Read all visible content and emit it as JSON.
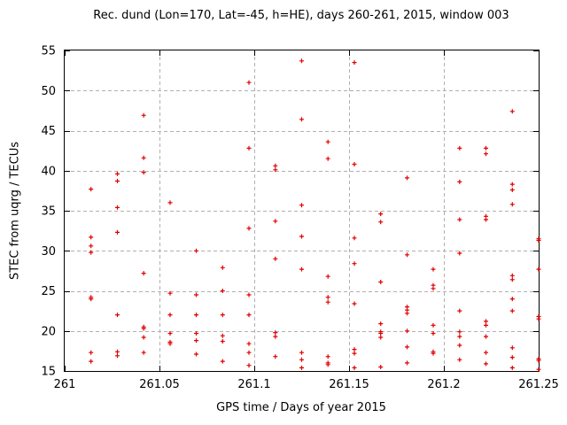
{
  "chart_data": {
    "type": "scatter",
    "title": "Rec. dund (Lon=170, Lat=-45, h=HE), days 260-261, 2015, window 003",
    "xlabel": "GPS time / Days of year 2015",
    "ylabel": "STEC from uqrg / TECUs",
    "xlim": [
      261,
      261.25
    ],
    "ylim": [
      15,
      55
    ],
    "xticks": [
      261,
      261.05,
      261.1,
      261.15,
      261.2,
      261.25
    ],
    "xtick_labels": [
      "261",
      "261.05",
      "261.1",
      "261.15",
      "261.2",
      "261.25"
    ],
    "yticks": [
      15,
      20,
      25,
      30,
      35,
      40,
      45,
      50,
      55
    ],
    "ytick_labels": [
      "15",
      "20",
      "25",
      "30",
      "35",
      "40",
      "45",
      "50",
      "55"
    ],
    "grid": true,
    "legend": "none",
    "marker": "plus",
    "marker_color": "#e10000",
    "grid_color": "#b0b0b0",
    "frame_color": "#000000",
    "points": [
      [
        261.0139,
        37.7
      ],
      [
        261.0139,
        31.7
      ],
      [
        261.0139,
        30.6
      ],
      [
        261.0139,
        29.8
      ],
      [
        261.0139,
        24.2
      ],
      [
        261.0139,
        24.0
      ],
      [
        261.0139,
        17.3
      ],
      [
        261.0139,
        16.2
      ],
      [
        261.0278,
        39.6
      ],
      [
        261.0278,
        38.7
      ],
      [
        261.0278,
        35.4
      ],
      [
        261.0278,
        32.3
      ],
      [
        261.0278,
        22.0
      ],
      [
        261.0278,
        17.4
      ],
      [
        261.0278,
        16.9
      ],
      [
        261.0417,
        46.9
      ],
      [
        261.0417,
        41.6
      ],
      [
        261.0417,
        39.8
      ],
      [
        261.0417,
        27.2
      ],
      [
        261.0417,
        20.5
      ],
      [
        261.0417,
        20.3
      ],
      [
        261.0417,
        19.2
      ],
      [
        261.0417,
        17.3
      ],
      [
        261.0556,
        36.0
      ],
      [
        261.0556,
        24.7
      ],
      [
        261.0556,
        22.0
      ],
      [
        261.0556,
        19.7
      ],
      [
        261.0556,
        18.6
      ],
      [
        261.0556,
        18.4
      ],
      [
        261.0694,
        30.0
      ],
      [
        261.0694,
        24.5
      ],
      [
        261.0694,
        22.0
      ],
      [
        261.0694,
        19.7
      ],
      [
        261.0694,
        18.8
      ],
      [
        261.0694,
        17.1
      ],
      [
        261.0833,
        27.9
      ],
      [
        261.0833,
        25.0
      ],
      [
        261.0833,
        22.0
      ],
      [
        261.0833,
        19.4
      ],
      [
        261.0833,
        18.7
      ],
      [
        261.0833,
        16.2
      ],
      [
        261.0972,
        51.0
      ],
      [
        261.0972,
        42.8
      ],
      [
        261.0972,
        32.8
      ],
      [
        261.0972,
        24.5
      ],
      [
        261.0972,
        22.0
      ],
      [
        261.0972,
        18.4
      ],
      [
        261.0972,
        17.3
      ],
      [
        261.0972,
        15.7
      ],
      [
        261.1111,
        40.6
      ],
      [
        261.1111,
        40.1
      ],
      [
        261.1111,
        33.7
      ],
      [
        261.1111,
        29.0
      ],
      [
        261.1111,
        19.8
      ],
      [
        261.1111,
        19.3
      ],
      [
        261.1111,
        16.8
      ],
      [
        261.125,
        53.7
      ],
      [
        261.125,
        46.4
      ],
      [
        261.125,
        35.7
      ],
      [
        261.125,
        31.8
      ],
      [
        261.125,
        27.7
      ],
      [
        261.125,
        17.3
      ],
      [
        261.125,
        16.4
      ],
      [
        261.125,
        15.4
      ],
      [
        261.1389,
        43.6
      ],
      [
        261.1389,
        41.5
      ],
      [
        261.1389,
        26.8
      ],
      [
        261.1389,
        24.2
      ],
      [
        261.1389,
        23.6
      ],
      [
        261.1389,
        16.8
      ],
      [
        261.1389,
        16.0
      ],
      [
        261.1389,
        15.8
      ],
      [
        261.1528,
        53.5
      ],
      [
        261.1528,
        40.8
      ],
      [
        261.1528,
        31.6
      ],
      [
        261.1528,
        28.4
      ],
      [
        261.1528,
        23.4
      ],
      [
        261.1528,
        17.7
      ],
      [
        261.1528,
        17.2
      ],
      [
        261.1528,
        15.4
      ],
      [
        261.1667,
        34.6
      ],
      [
        261.1667,
        33.6
      ],
      [
        261.1667,
        26.1
      ],
      [
        261.1667,
        20.9
      ],
      [
        261.1667,
        19.9
      ],
      [
        261.1667,
        19.7
      ],
      [
        261.1667,
        19.2
      ],
      [
        261.1667,
        15.5
      ],
      [
        261.1806,
        39.1
      ],
      [
        261.1806,
        29.5
      ],
      [
        261.1806,
        23.0
      ],
      [
        261.1806,
        22.6
      ],
      [
        261.1806,
        22.2
      ],
      [
        261.1806,
        20.0
      ],
      [
        261.1806,
        18.0
      ],
      [
        261.1806,
        16.0
      ],
      [
        261.1944,
        27.7
      ],
      [
        261.1944,
        25.7
      ],
      [
        261.1944,
        25.3
      ],
      [
        261.1944,
        20.7
      ],
      [
        261.1944,
        19.7
      ],
      [
        261.1944,
        17.4
      ],
      [
        261.1944,
        17.2
      ],
      [
        261.2083,
        42.8
      ],
      [
        261.2083,
        38.6
      ],
      [
        261.2083,
        33.9
      ],
      [
        261.2083,
        29.7
      ],
      [
        261.2083,
        22.5
      ],
      [
        261.2083,
        19.9
      ],
      [
        261.2083,
        19.3
      ],
      [
        261.2083,
        18.2
      ],
      [
        261.2083,
        16.4
      ],
      [
        261.2222,
        42.8
      ],
      [
        261.2222,
        42.1
      ],
      [
        261.2222,
        34.3
      ],
      [
        261.2222,
        33.9
      ],
      [
        261.2222,
        21.2
      ],
      [
        261.2222,
        20.7
      ],
      [
        261.2222,
        19.3
      ],
      [
        261.2222,
        17.3
      ],
      [
        261.2222,
        15.9
      ],
      [
        261.2361,
        47.4
      ],
      [
        261.2361,
        38.3
      ],
      [
        261.2361,
        37.6
      ],
      [
        261.2361,
        35.8
      ],
      [
        261.2361,
        26.9
      ],
      [
        261.2361,
        26.4
      ],
      [
        261.2361,
        24.0
      ],
      [
        261.2361,
        22.5
      ],
      [
        261.2361,
        17.9
      ],
      [
        261.2361,
        16.7
      ],
      [
        261.2361,
        15.4
      ],
      [
        261.25,
        31.5
      ],
      [
        261.25,
        31.3
      ],
      [
        261.25,
        27.7
      ],
      [
        261.25,
        21.8
      ],
      [
        261.25,
        21.5
      ],
      [
        261.25,
        16.5
      ],
      [
        261.25,
        16.3
      ],
      [
        261.25,
        15.2
      ]
    ]
  }
}
